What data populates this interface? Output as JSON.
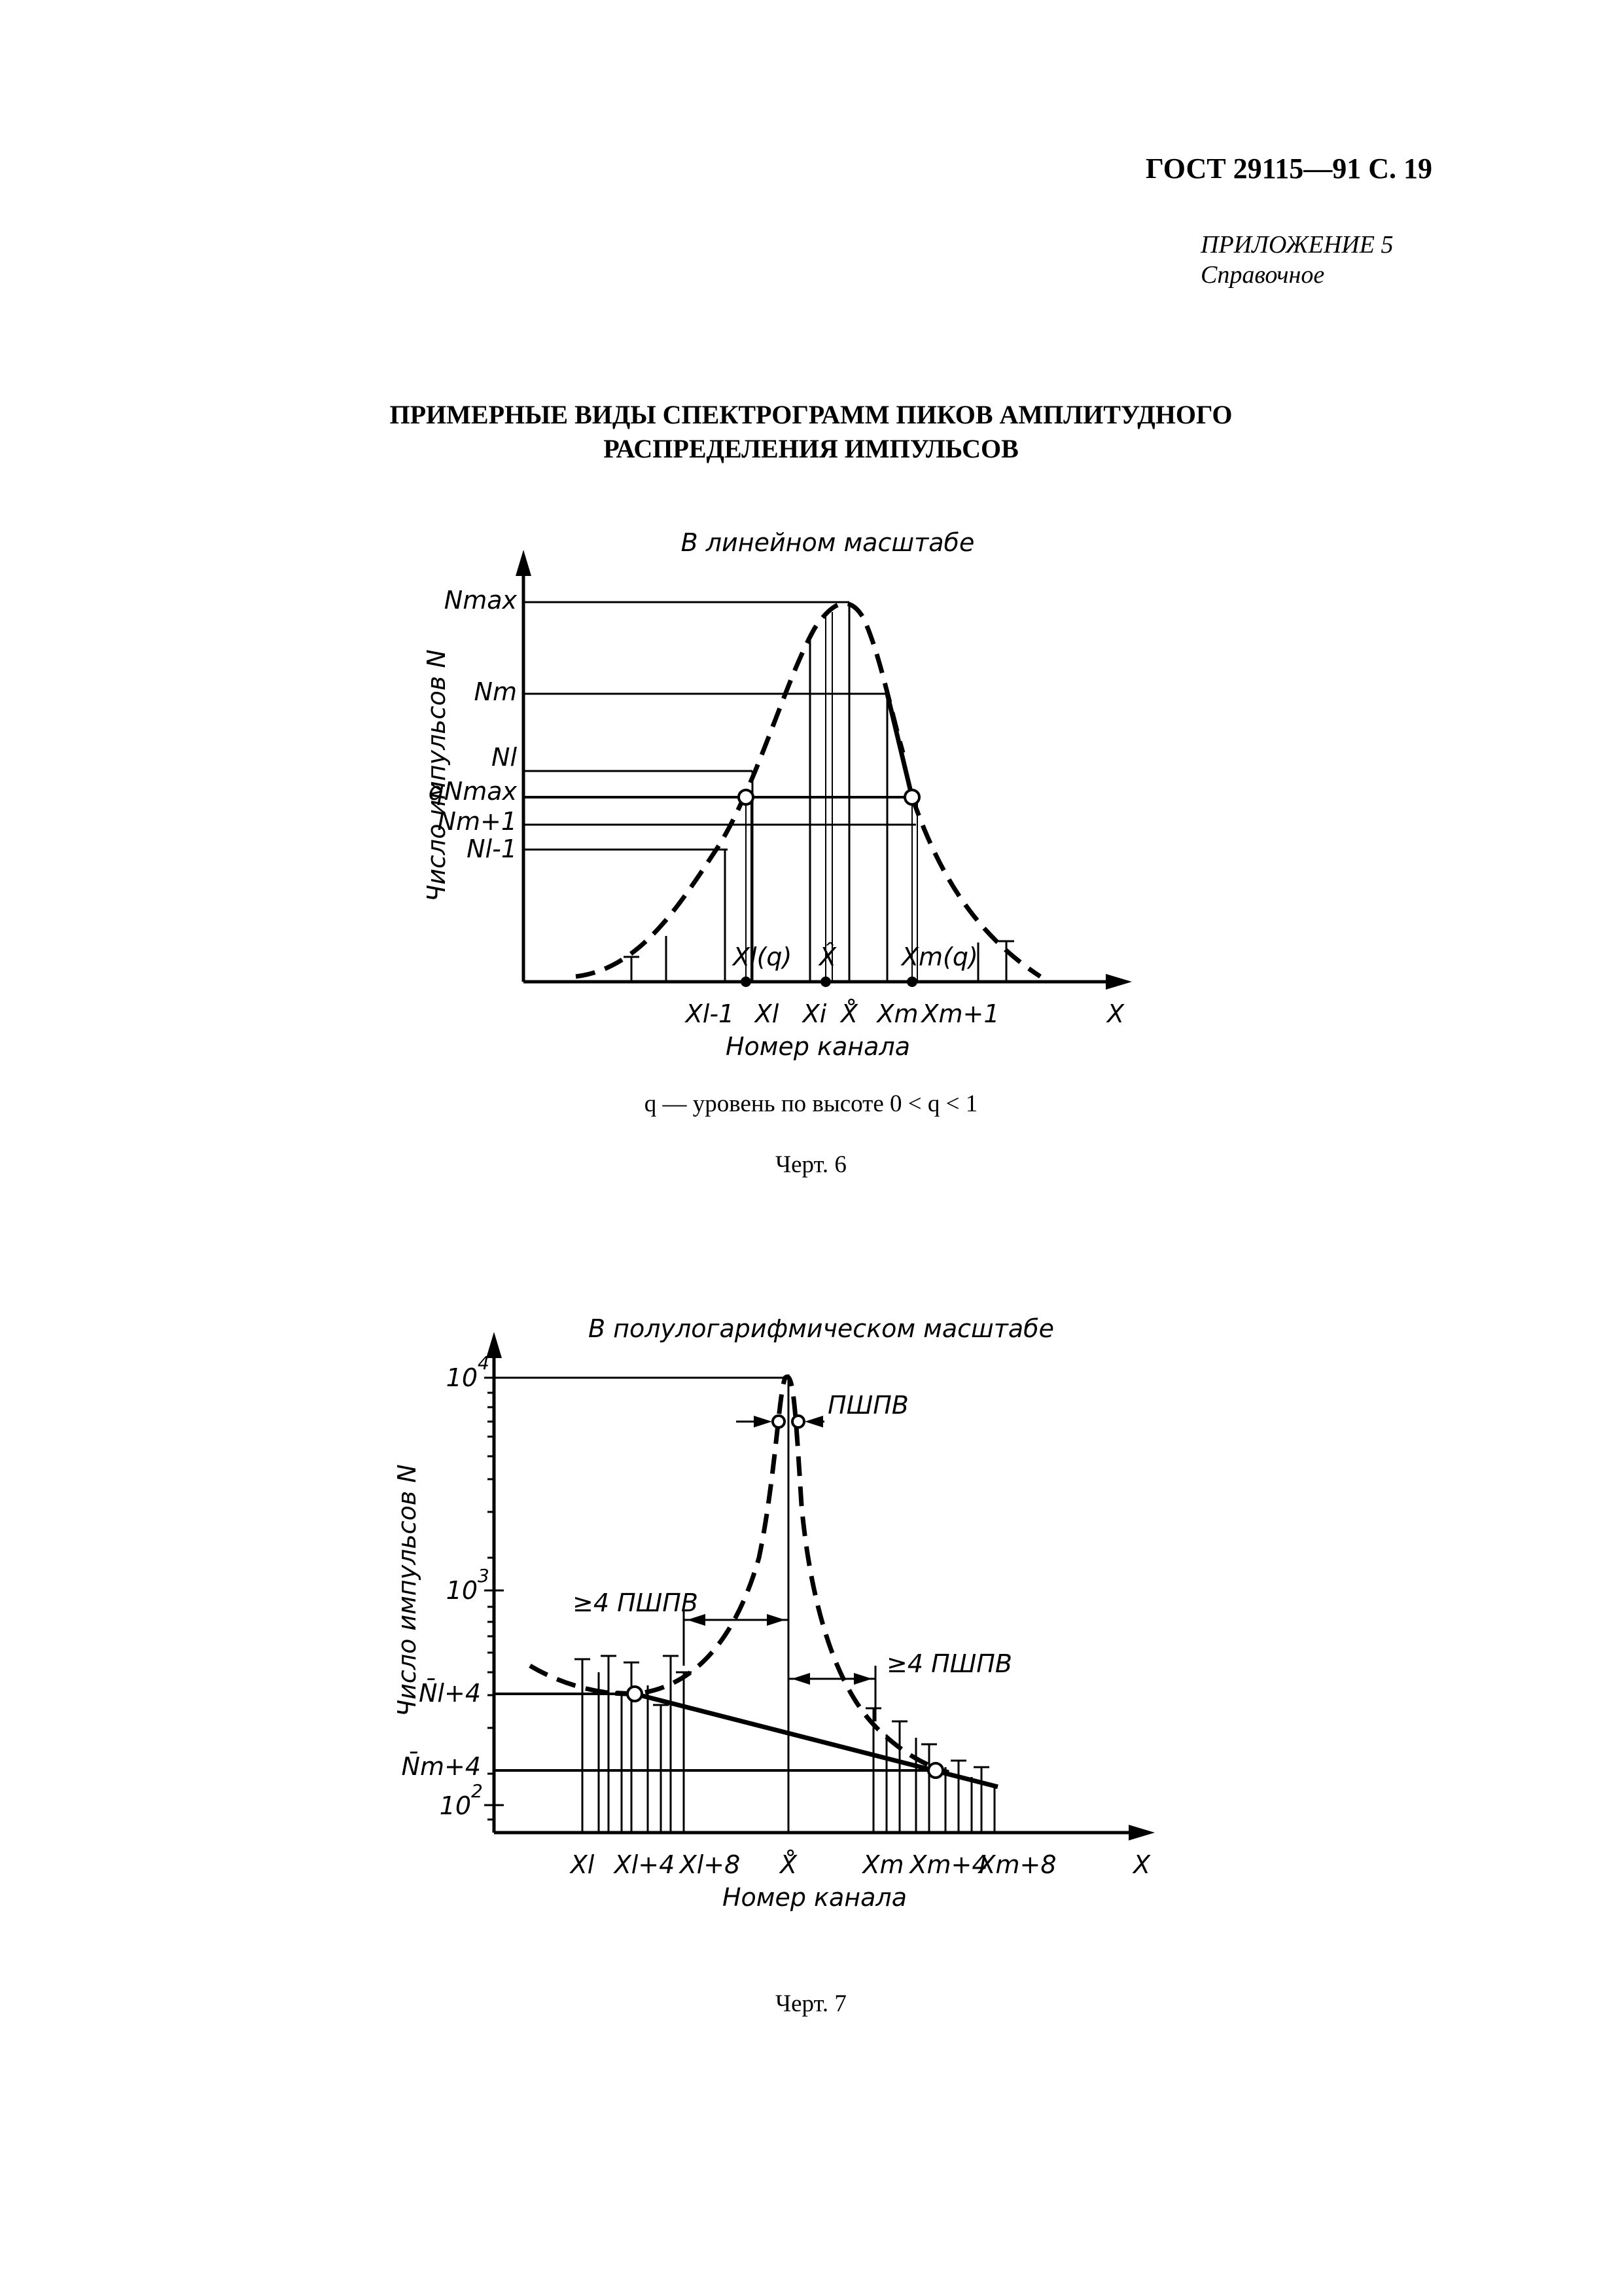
{
  "header": {
    "doc_ref": "ГОСТ 29115—91 С. 19"
  },
  "appendix": {
    "label": "ПРИЛОЖЕНИЕ 5",
    "kind": "Справочное"
  },
  "title": {
    "line1": "ПРИМЕРНЫЕ ВИДЫ СПЕКТРОГРАММ ПИКОВ АМПЛИТУДНОГО",
    "line2": "РАСПРЕДЕЛЕНИЯ ИМПУЛЬСОВ"
  },
  "fig6": {
    "title": "В линейном масштабе",
    "ylabel": "Число импульсов N",
    "xlabel": "Номер канала",
    "axis_x": "X",
    "y_labels": {
      "nmax": "Nmax",
      "nm": "Nm",
      "nl": "Nl",
      "qnmax": "qNmax",
      "nm1": "Nm+1",
      "nl1": "Nl-1"
    },
    "x_labels": {
      "xl1": "Xl-1",
      "xl": "Xl",
      "xi": "Xi",
      "xhat": "X̂",
      "xcirc": "X̊",
      "xm": "Xm",
      "xm1": "Xm+1"
    },
    "inner_labels": {
      "xlq": "Xl(q)",
      "xhat_in": "X̂",
      "xmq": "Xm(q)"
    },
    "note": "q — уровень по высоте 0 < q < 1",
    "caption": "Черт. 6"
  },
  "fig7": {
    "title": "В полулогарифмическом масштабе",
    "ylabel": "Число импульсов N",
    "xlabel": "Номер канала",
    "axis_x": "X",
    "y_labels": {
      "e4": "10",
      "e4_exp": "4",
      "e3": "10",
      "e3_exp": "3",
      "e2": "10",
      "e2_exp": "2",
      "nl4": "N̄l+4",
      "nm4": "N̄m+4"
    },
    "x_labels": {
      "xl": "Xl",
      "xl4": "Xl+4",
      "xl8": "Xl+8",
      "xcirc": "X̊",
      "xm": "Xm",
      "xm4": "Xm+4",
      "xm8": "Xm+8"
    },
    "annotations": {
      "fwhm": "ПШПВ",
      "left_4": "≥4 ПШПВ",
      "right_4": "≥4 ПШПВ"
    },
    "caption": "Черт. 7"
  }
}
